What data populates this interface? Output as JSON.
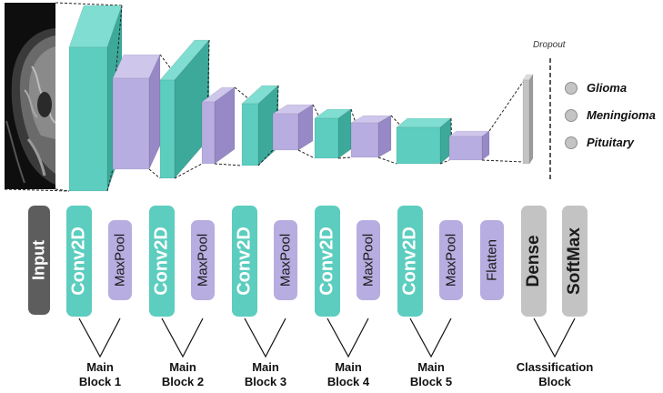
{
  "colors": {
    "conv": "#5ccdbf",
    "conv_top": "#7fddd1",
    "conv_side": "#3ca99a",
    "pool": "#b8ade0",
    "pool_top": "#cfc6ec",
    "pool_side": "#9788c6",
    "dense_gray": "#c3c3c3",
    "input_dark": "#5d5d5d"
  },
  "diagram": {
    "dropout_label": "Dropout",
    "classes": [
      "Glioma",
      "Meningioma",
      "Pituitary"
    ]
  },
  "layers": [
    {
      "label": "Input",
      "kind": "input"
    },
    {
      "label": "Conv2D",
      "kind": "conv"
    },
    {
      "label": "MaxPool",
      "kind": "pool"
    },
    {
      "label": "Conv2D",
      "kind": "conv"
    },
    {
      "label": "MaxPool",
      "kind": "pool"
    },
    {
      "label": "Conv2D",
      "kind": "conv"
    },
    {
      "label": "MaxPool",
      "kind": "pool"
    },
    {
      "label": "Conv2D",
      "kind": "conv"
    },
    {
      "label": "MaxPool",
      "kind": "pool"
    },
    {
      "label": "Conv2D",
      "kind": "conv"
    },
    {
      "label": "MaxPool",
      "kind": "pool"
    },
    {
      "label": "Flatten",
      "kind": "flatten"
    },
    {
      "label": "Dense",
      "kind": "dense"
    },
    {
      "label": "SoftMax",
      "kind": "dense"
    }
  ],
  "blocks": [
    {
      "line1": "Main",
      "line2": "Block 1"
    },
    {
      "line1": "Main",
      "line2": "Block 2"
    },
    {
      "line1": "Main",
      "line2": "Block 3"
    },
    {
      "line1": "Main",
      "line2": "Block 4"
    },
    {
      "line1": "Main",
      "line2": "Block 5"
    },
    {
      "line1": "Classification",
      "line2": "Block"
    }
  ]
}
